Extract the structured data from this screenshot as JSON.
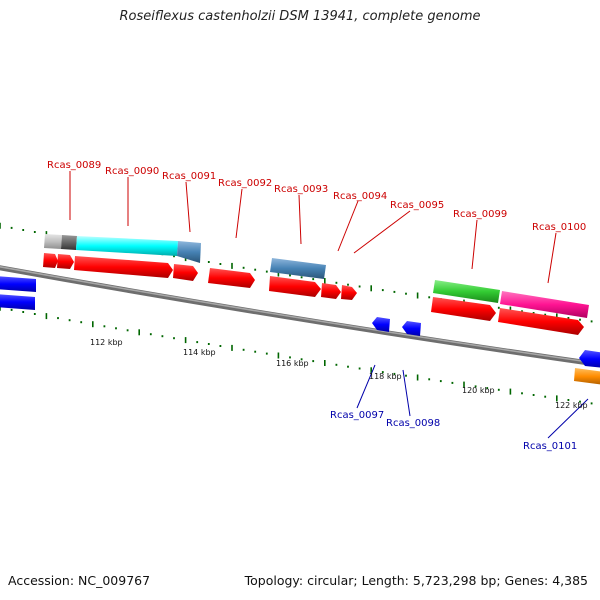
{
  "title": "Roseiflexus castenholzii DSM 13941, complete genome",
  "footer": {
    "accession": "Accession: NC_009767",
    "summary": "Topology: circular; Length: 5,723,298 bp; Genes: 4,385"
  },
  "scale_labels": [
    "112 kbp",
    "114 kbp",
    "116 kbp",
    "118 kbp",
    "120 kbp",
    "122 kbp"
  ],
  "gene_labels": {
    "forward": [
      "Rcas_0089",
      "Rcas_0090",
      "Rcas_0091",
      "Rcas_0092",
      "Rcas_0093",
      "Rcas_0094",
      "Rcas_0095",
      "Rcas_0099",
      "Rcas_0100"
    ],
    "reverse": [
      "Rcas_0097",
      "Rcas_0098",
      "Rcas_0101"
    ]
  },
  "colors": {
    "backbone": "#808080",
    "forward_gene": "#ff0000",
    "reverse_gene": "#0000ff",
    "tick": "#006600",
    "forward_label": "#cc0000",
    "reverse_label": "#0000aa",
    "feature_cyan": "#00ffff",
    "feature_steel": "#4682b4",
    "feature_gray": "#bfbfbf",
    "feature_darkgray": "#666666",
    "feature_green": "#33cc33",
    "feature_pink": "#ff1493",
    "feature_orange": "#ff8c00"
  }
}
